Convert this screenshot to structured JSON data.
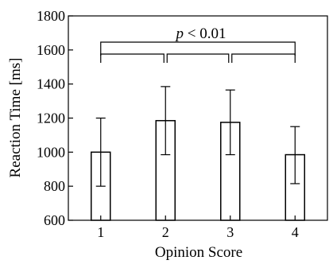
{
  "chart_data": {
    "type": "bar",
    "title": "",
    "xlabel": "Opinion Score",
    "ylabel": "Reaction Time [ms]",
    "categories": [
      "1",
      "2",
      "3",
      "4"
    ],
    "values": [
      1000,
      1185,
      1175,
      985
    ],
    "error_low": [
      800,
      985,
      985,
      815
    ],
    "error_high": [
      1200,
      1385,
      1365,
      1150
    ],
    "ylim": [
      600,
      1800
    ],
    "y_ticks": [
      600,
      800,
      1000,
      1200,
      1400,
      1600,
      1800
    ],
    "y_tick_labels": [
      "600",
      "800",
      "1000",
      "1200",
      "1400",
      "1600",
      "1800"
    ],
    "grid": false,
    "significance": {
      "label_italic": "p",
      "label_rest": " < 0.01",
      "pairs": [
        [
          1,
          2
        ],
        [
          2,
          3
        ],
        [
          3,
          4
        ]
      ],
      "outer_pair": [
        1,
        4
      ]
    }
  }
}
